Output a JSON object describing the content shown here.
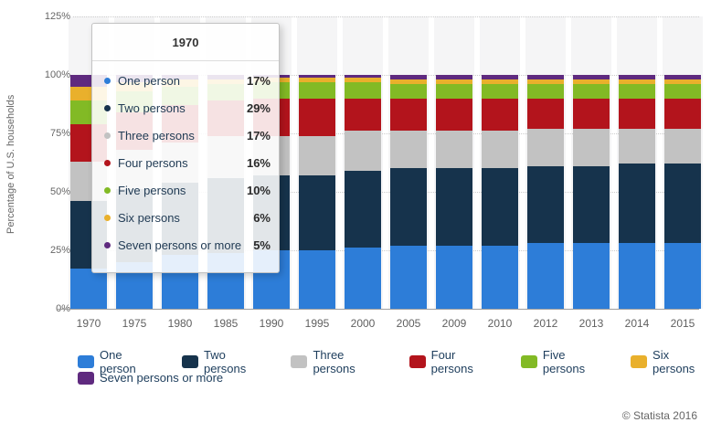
{
  "chart_data": {
    "type": "bar",
    "stacked": true,
    "title": "",
    "xlabel": "",
    "ylabel": "Percentage of U.S. households",
    "ylim": [
      0,
      125
    ],
    "ytick_values": [
      0,
      25,
      50,
      75,
      100,
      125
    ],
    "ytick_labels": [
      "0%",
      "25%",
      "50%",
      "75%",
      "100%",
      "125%"
    ],
    "grid": "horizontal-dotted",
    "legend_position": "bottom",
    "categories": [
      "1970",
      "1975",
      "1980",
      "1985",
      "1990",
      "1995",
      "2000",
      "2005",
      "2009",
      "2010",
      "2012",
      "2013",
      "2014",
      "2015"
    ],
    "series": [
      {
        "name": "One person",
        "color": "#2d7dd8",
        "values": [
          17,
          20,
          23,
          24,
          25,
          25,
          26,
          27,
          27,
          27,
          28,
          28,
          28,
          28
        ]
      },
      {
        "name": "Two persons",
        "color": "#16334c",
        "values": [
          29,
          31,
          31,
          32,
          32,
          32,
          33,
          33,
          33,
          33,
          33,
          33,
          34,
          34
        ]
      },
      {
        "name": "Three persons",
        "color": "#c2c2c2",
        "values": [
          17,
          17,
          17,
          18,
          17,
          17,
          17,
          16,
          16,
          16,
          16,
          16,
          15,
          15
        ]
      },
      {
        "name": "Four persons",
        "color": "#b3141c",
        "values": [
          16,
          16,
          16,
          15,
          16,
          16,
          14,
          14,
          14,
          14,
          13,
          13,
          13,
          13
        ]
      },
      {
        "name": "Five persons",
        "color": "#82ba25",
        "values": [
          10,
          9,
          8,
          7,
          7,
          7,
          7,
          6,
          6,
          6,
          6,
          6,
          6,
          6
        ]
      },
      {
        "name": "Six persons",
        "color": "#e9b02c",
        "values": [
          6,
          4,
          3,
          2,
          2,
          2,
          2,
          2,
          2,
          2,
          2,
          2,
          2,
          2
        ]
      },
      {
        "name": "Seven persons or more",
        "color": "#5f2a7f",
        "values": [
          5,
          3,
          2,
          2,
          1,
          1,
          1,
          2,
          2,
          2,
          2,
          2,
          2,
          2
        ]
      }
    ]
  },
  "tooltip": {
    "title": "1970",
    "rows": [
      {
        "label": "One person",
        "value": "17%",
        "color": "#2d7dd8"
      },
      {
        "label": "Two persons",
        "value": "29%",
        "color": "#16334c"
      },
      {
        "label": "Three persons",
        "value": "17%",
        "color": "#c2c2c2"
      },
      {
        "label": "Four persons",
        "value": "16%",
        "color": "#b3141c"
      },
      {
        "label": "Five persons",
        "value": "10%",
        "color": "#82ba25"
      },
      {
        "label": "Six persons",
        "value": "6%",
        "color": "#e9b02c"
      },
      {
        "label": "Seven persons or more",
        "value": "5%",
        "color": "#5f2a7f"
      }
    ]
  },
  "footer": {
    "copyright": "© Statista 2016"
  }
}
